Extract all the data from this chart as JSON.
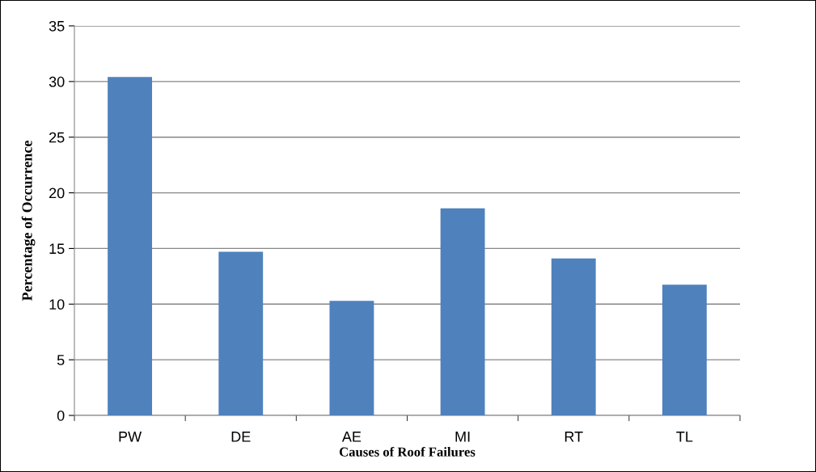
{
  "chart_data": {
    "type": "bar",
    "xlabel": "Causes of Roof Failures",
    "ylabel": "Percentage of Occurrence",
    "categories": [
      "PW",
      "DE",
      "AE",
      "MI",
      "RT",
      "TL"
    ],
    "values": [
      30.4,
      14.7,
      10.3,
      18.6,
      14.1,
      11.75
    ],
    "color": "#4f81bd",
    "ylim": [
      0,
      35
    ],
    "yticks": [
      0,
      5,
      10,
      15,
      20,
      25,
      30,
      35
    ],
    "grid": "y",
    "legend": false
  }
}
